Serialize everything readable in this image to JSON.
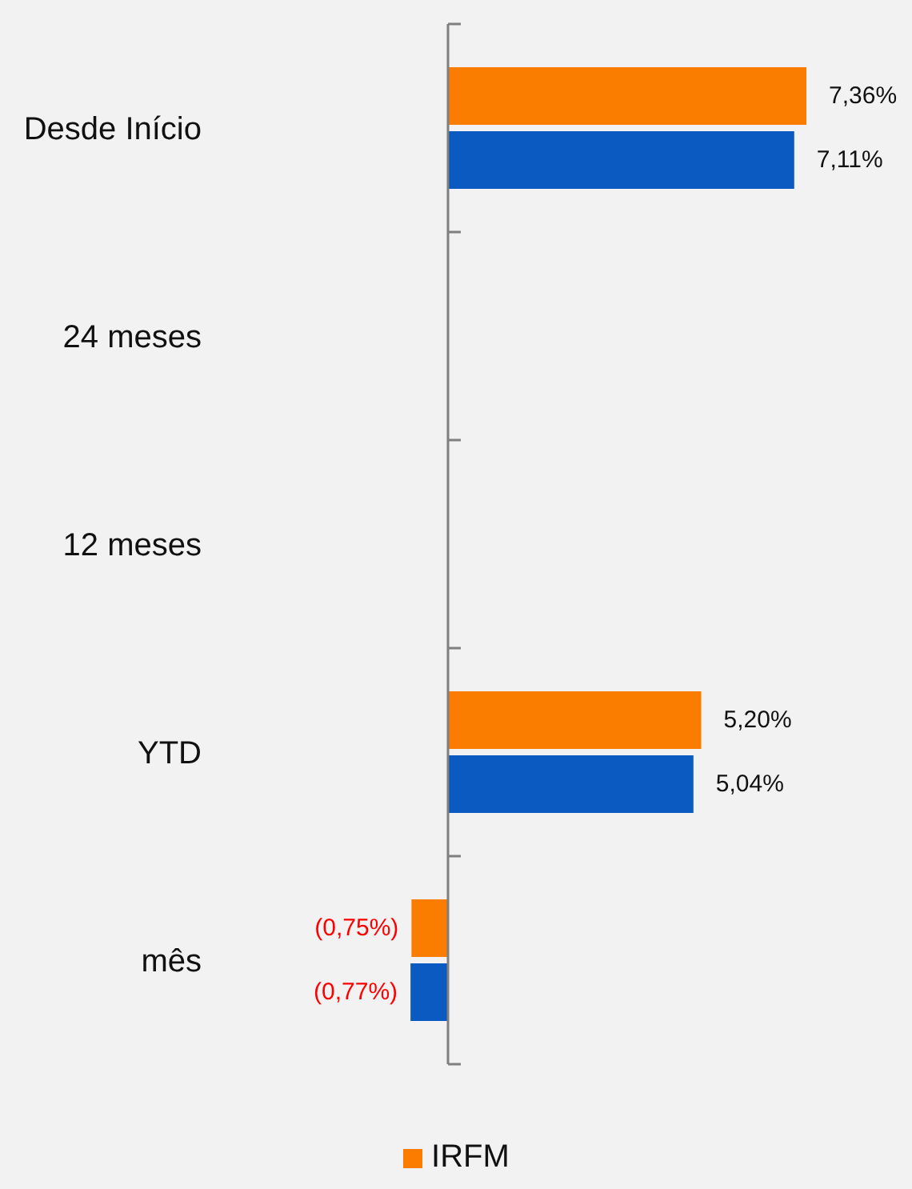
{
  "chart_data": {
    "type": "bar",
    "orientation": "horizontal",
    "categories": [
      "Desde Início",
      "24 meses",
      "12 meses",
      "YTD",
      "mês"
    ],
    "series": [
      {
        "name": "IRFM",
        "color": "#fa7d00",
        "values": [
          7.36,
          null,
          null,
          5.2,
          -0.75
        ],
        "value_labels": [
          "7,36%",
          null,
          null,
          "5,20%",
          "(0,75%)"
        ]
      },
      {
        "color": "#0a5ac2",
        "values": [
          7.11,
          null,
          null,
          5.04,
          -0.77
        ],
        "value_labels": [
          "7,11%",
          null,
          null,
          "5,04%",
          "(0,77%)"
        ]
      }
    ],
    "tick_labels": "y",
    "grid": false,
    "legend": "bottom"
  }
}
